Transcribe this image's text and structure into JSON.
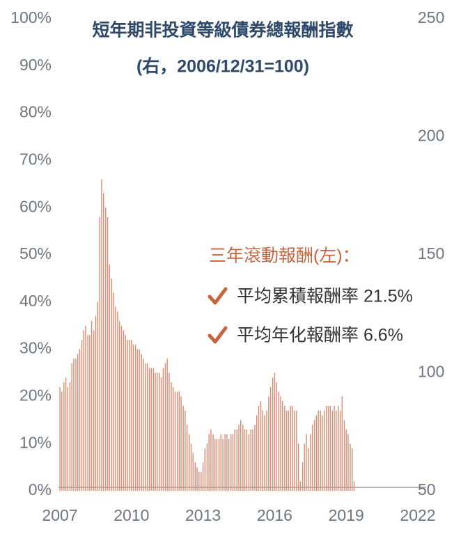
{
  "chart_data": {
    "type": "bar",
    "title": "短年期非投資等級債券總報酬指數",
    "subtitle": "(右，2006/12/31=100)",
    "annotations": [
      "三年滾動報酬(左)：",
      "平均累積報酬率 21.5%",
      "平均年化報酬率 6.6%"
    ],
    "color": "#dc8a70",
    "xlim": [
      2007,
      2022
    ],
    "xticks": [
      2007,
      2010,
      2013,
      2016,
      2019,
      2022
    ],
    "ylim": [
      0,
      100
    ],
    "yticks": [
      {
        "value": 0,
        "label": "0%"
      },
      {
        "value": 10,
        "label": "10%"
      },
      {
        "value": 20,
        "label": "20%"
      },
      {
        "value": 30,
        "label": "30%"
      },
      {
        "value": 40,
        "label": "40%"
      },
      {
        "value": 50,
        "label": "50%"
      },
      {
        "value": 60,
        "label": "60%"
      },
      {
        "value": 70,
        "label": "70%"
      },
      {
        "value": 80,
        "label": "80%"
      },
      {
        "value": 90,
        "label": "90%"
      },
      {
        "value": 100,
        "label": "100%"
      }
    ],
    "y2lim": [
      50,
      250
    ],
    "y2ticks": [
      50,
      100,
      150,
      200,
      250
    ],
    "x": [
      2007.0,
      2007.08,
      2007.17,
      2007.25,
      2007.33,
      2007.42,
      2007.5,
      2007.58,
      2007.67,
      2007.75,
      2007.83,
      2007.92,
      2008.0,
      2008.08,
      2008.17,
      2008.25,
      2008.33,
      2008.42,
      2008.5,
      2008.58,
      2008.67,
      2008.75,
      2008.83,
      2008.92,
      2009.0,
      2009.08,
      2009.17,
      2009.25,
      2009.33,
      2009.42,
      2009.5,
      2009.58,
      2009.67,
      2009.75,
      2009.83,
      2009.92,
      2010.0,
      2010.08,
      2010.17,
      2010.25,
      2010.33,
      2010.42,
      2010.5,
      2010.58,
      2010.67,
      2010.75,
      2010.83,
      2010.92,
      2011.0,
      2011.08,
      2011.17,
      2011.25,
      2011.33,
      2011.42,
      2011.5,
      2011.58,
      2011.67,
      2011.75,
      2011.83,
      2011.92,
      2012.0,
      2012.08,
      2012.17,
      2012.25,
      2012.33,
      2012.42,
      2012.5,
      2012.58,
      2012.67,
      2012.75,
      2012.83,
      2012.92,
      2013.0,
      2013.08,
      2013.17,
      2013.25,
      2013.33,
      2013.42,
      2013.5,
      2013.58,
      2013.67,
      2013.75,
      2013.83,
      2013.92,
      2014.0,
      2014.08,
      2014.17,
      2014.25,
      2014.33,
      2014.42,
      2014.5,
      2014.58,
      2014.67,
      2014.75,
      2014.83,
      2014.92,
      2015.0,
      2015.08,
      2015.17,
      2015.25,
      2015.33,
      2015.42,
      2015.5,
      2015.58,
      2015.67,
      2015.75,
      2015.83,
      2015.92,
      2016.0,
      2016.08,
      2016.17,
      2016.25,
      2016.33,
      2016.42,
      2016.5,
      2016.58,
      2016.67,
      2016.75,
      2016.83,
      2016.92,
      2017.0,
      2017.08,
      2017.17,
      2017.25,
      2017.33,
      2017.42,
      2017.5,
      2017.58,
      2017.67,
      2017.75,
      2017.83,
      2017.92,
      2018.0,
      2018.08,
      2018.17,
      2018.25,
      2018.33,
      2018.42,
      2018.5,
      2018.58,
      2018.67,
      2018.75,
      2018.83,
      2018.92,
      2019.0,
      2019.08,
      2019.17,
      2019.25,
      2019.33
    ],
    "values": [
      22,
      21,
      23,
      24,
      22,
      23,
      27,
      28,
      28,
      29,
      30,
      32,
      34,
      35,
      33,
      33,
      36,
      34,
      37,
      40,
      58,
      66,
      63,
      60,
      58,
      48,
      45,
      42,
      39,
      38,
      36,
      35,
      34,
      33,
      32,
      32,
      32,
      31,
      31,
      30,
      30,
      29,
      28,
      27,
      27,
      26,
      26,
      26,
      25,
      25,
      25,
      24,
      26,
      27,
      28,
      25,
      23,
      22,
      21,
      21,
      21,
      20,
      18,
      17,
      14,
      12,
      10,
      8,
      6,
      5,
      4,
      4,
      6,
      9,
      10,
      12,
      13,
      12,
      11,
      11,
      11,
      12,
      11,
      12,
      12,
      11,
      12,
      12,
      13,
      13,
      14,
      15,
      14,
      13,
      13,
      12,
      13,
      13,
      14,
      16,
      18,
      19,
      17,
      16,
      17,
      20,
      22,
      24,
      25,
      23,
      21,
      20,
      19,
      18,
      17,
      17,
      18,
      18,
      17,
      17,
      10,
      2,
      6,
      10,
      12,
      9,
      12,
      14,
      15,
      16,
      17,
      17,
      16,
      17,
      18,
      18,
      18,
      17,
      18,
      17,
      18,
      17,
      20,
      15,
      13,
      12,
      10,
      9,
      2
    ]
  }
}
